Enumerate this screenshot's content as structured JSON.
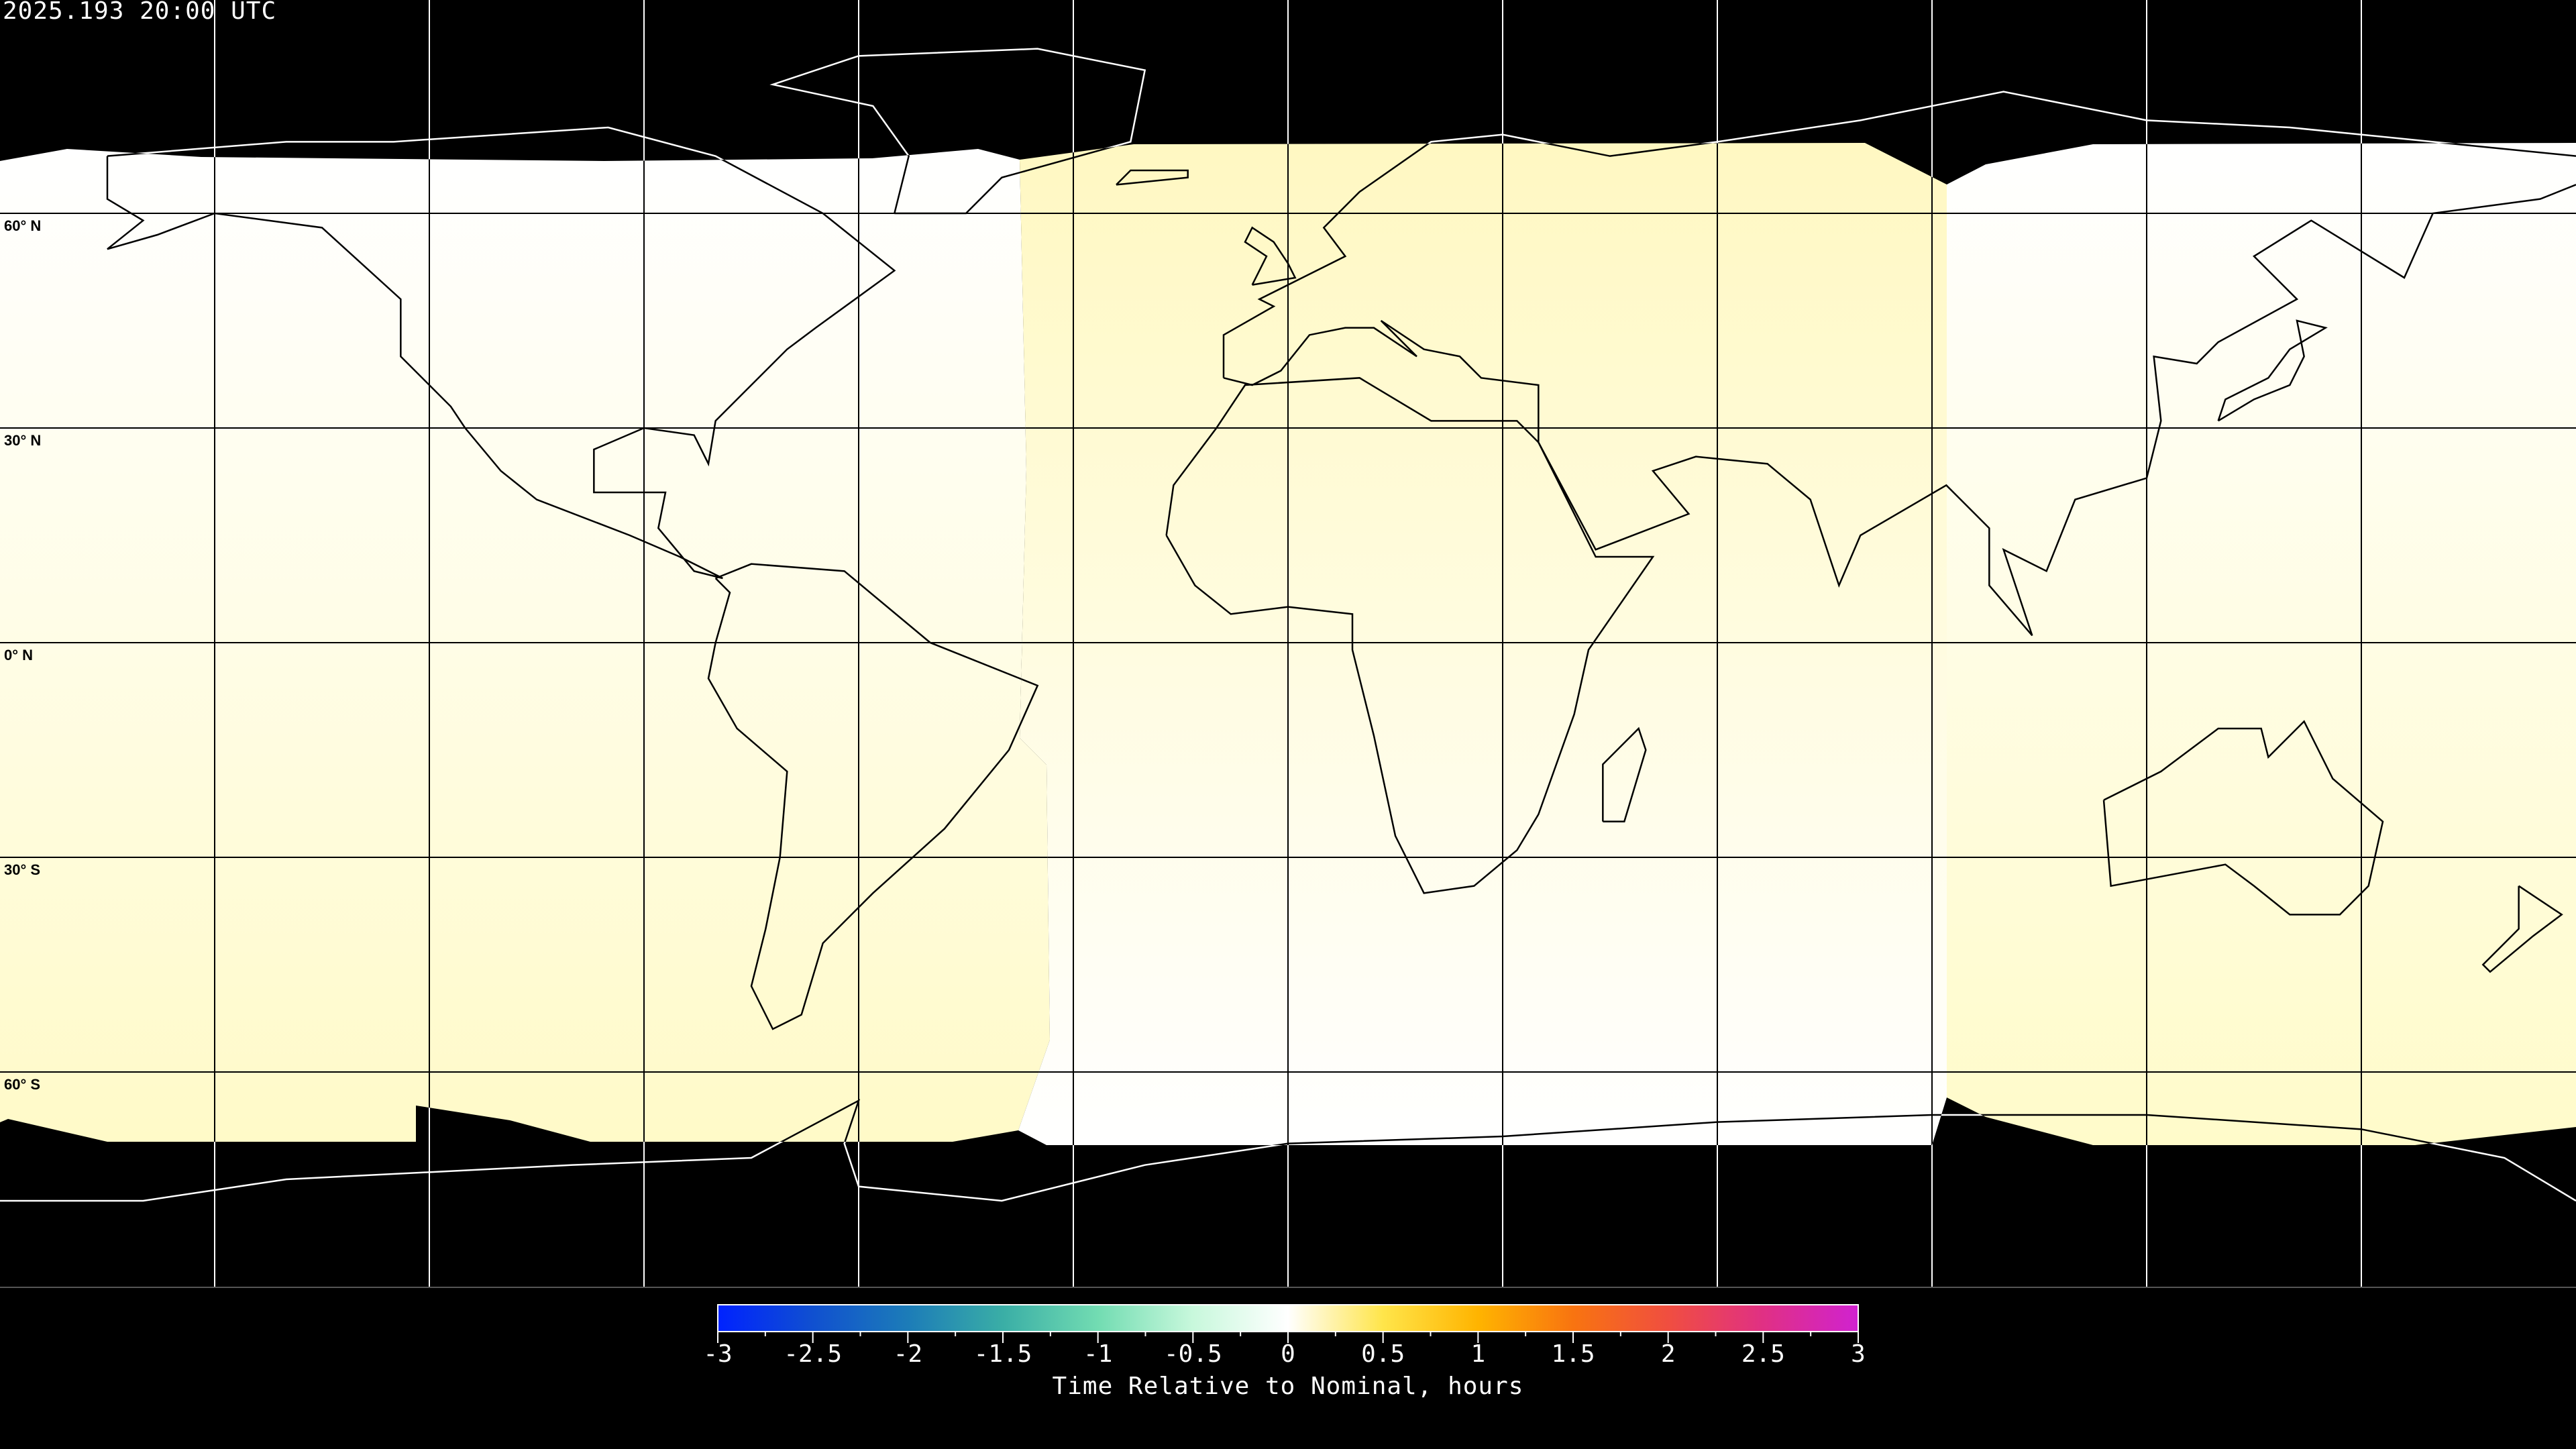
{
  "header": {
    "title": "2025.193 20:00 UTC"
  },
  "map": {
    "projection": "equirectangular",
    "lat_labels": [
      "60° N",
      "30° N",
      "0° N",
      "30° S",
      "60° S"
    ],
    "lat_lines": [
      60,
      30,
      0,
      -30,
      -60
    ],
    "lon_lines": [
      -150,
      -120,
      -90,
      -60,
      -30,
      0,
      30,
      60,
      90,
      120,
      150
    ],
    "no_data_color": "#000000",
    "coastline_color": "#000000",
    "regions": [
      {
        "name": "americas",
        "colors": [
          "#ffffff",
          "#fffde6",
          "#fffac8"
        ]
      },
      {
        "name": "europe-africa",
        "colors": [
          "#fff8c2",
          "#fffce0",
          "#ffffff"
        ]
      },
      {
        "name": "asia-pacific",
        "colors": [
          "#ffffff",
          "#fffde4",
          "#fffbca"
        ]
      }
    ]
  },
  "colorbar": {
    "title": "Time Relative to Nominal, hours",
    "min": -3,
    "max": 3,
    "tick_labels": [
      "-3",
      "-2.5",
      "-2",
      "-1.5",
      "-1",
      "-0.5",
      "0",
      "0.5",
      "1",
      "1.5",
      "2",
      "2.5",
      "3"
    ],
    "colors": [
      "#0022ff",
      "#1050d0",
      "#1c7cb8",
      "#3aaea6",
      "#72dcb2",
      "#c8f8dc",
      "#ffffff",
      "#ffe54a",
      "#ffb400",
      "#f87410",
      "#f04e40",
      "#e03084",
      "#d022d0"
    ]
  }
}
